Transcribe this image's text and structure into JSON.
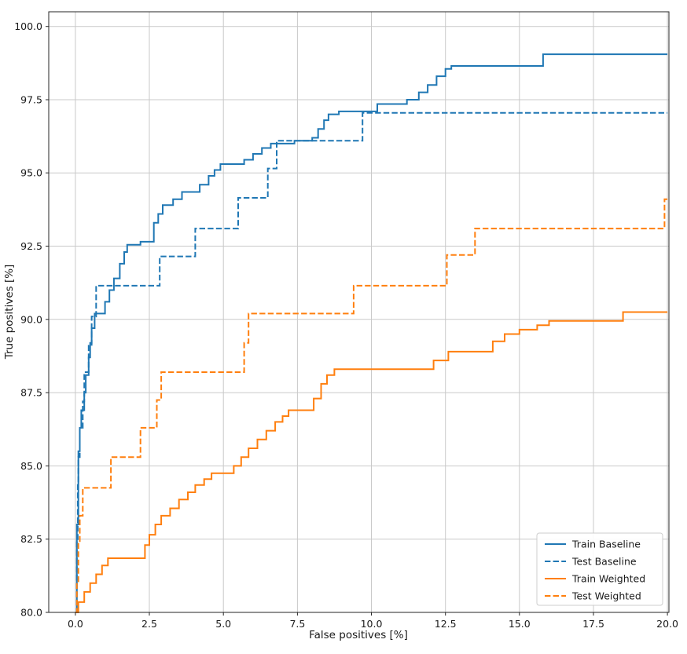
{
  "figure": {
    "background": "#ffffff"
  },
  "chart_data": {
    "type": "line",
    "subtype": "step-post",
    "title": "",
    "xlabel": "False positives [%]",
    "ylabel": "True positives [%]",
    "xlim": [
      0,
      20
    ],
    "ylim": [
      80,
      100
    ],
    "grid": true,
    "grid_color": "#c9c9c9",
    "axis_color": "#262626",
    "legend_position": "lower right",
    "xticks": [
      0,
      2.5,
      5,
      7.5,
      10,
      12.5,
      15,
      17.5,
      20
    ],
    "xtick_labels": [
      "0.0",
      "2.5",
      "5.0",
      "7.5",
      "10.0",
      "12.5",
      "15.0",
      "17.5",
      "20.0"
    ],
    "yticks": [
      80,
      82.5,
      85,
      87.5,
      90,
      92.5,
      95,
      97.5,
      100
    ],
    "ytick_labels": [
      "80.0",
      "82.5",
      "85.0",
      "87.5",
      "90.0",
      "92.5",
      "95.0",
      "97.5",
      "100.0"
    ],
    "series": [
      {
        "name": "Train Baseline",
        "color": "#1f77b4",
        "style": "solid",
        "points": [
          [
            0,
            80
          ],
          [
            0.05,
            83
          ],
          [
            0.1,
            85.5
          ],
          [
            0.15,
            86.3
          ],
          [
            0.2,
            86.9
          ],
          [
            0.3,
            87.5
          ],
          [
            0.35,
            88.1
          ],
          [
            0.45,
            88.7
          ],
          [
            0.5,
            89.2
          ],
          [
            0.55,
            89.7
          ],
          [
            0.65,
            90.2
          ],
          [
            1,
            90.6
          ],
          [
            1.15,
            91
          ],
          [
            1.3,
            91.4
          ],
          [
            1.5,
            91.9
          ],
          [
            1.65,
            92.3
          ],
          [
            1.75,
            92.55
          ],
          [
            2.2,
            92.65
          ],
          [
            2.65,
            93.3
          ],
          [
            2.8,
            93.6
          ],
          [
            2.95,
            93.9
          ],
          [
            3.3,
            94.1
          ],
          [
            3.6,
            94.35
          ],
          [
            4.2,
            94.6
          ],
          [
            4.5,
            94.9
          ],
          [
            4.7,
            95.1
          ],
          [
            4.9,
            95.3
          ],
          [
            5.7,
            95.45
          ],
          [
            6,
            95.65
          ],
          [
            6.3,
            95.85
          ],
          [
            6.6,
            96
          ],
          [
            7.4,
            96.1
          ],
          [
            8,
            96.2
          ],
          [
            8.2,
            96.5
          ],
          [
            8.4,
            96.8
          ],
          [
            8.55,
            97
          ],
          [
            8.9,
            97.1
          ],
          [
            10.2,
            97.35
          ],
          [
            11.2,
            97.5
          ],
          [
            11.6,
            97.75
          ],
          [
            11.9,
            98
          ],
          [
            12.2,
            98.3
          ],
          [
            12.5,
            98.55
          ],
          [
            12.7,
            98.65
          ],
          [
            15.8,
            99.05
          ],
          [
            20,
            99.05
          ]
        ]
      },
      {
        "name": "Test Baseline",
        "color": "#1f77b4",
        "style": "dashed",
        "points": [
          [
            0,
            80
          ],
          [
            0.05,
            82.5
          ],
          [
            0.08,
            84.4
          ],
          [
            0.1,
            85.3
          ],
          [
            0.15,
            86.3
          ],
          [
            0.25,
            87.2
          ],
          [
            0.3,
            88.2
          ],
          [
            0.45,
            89.1
          ],
          [
            0.55,
            90.1
          ],
          [
            0.7,
            91.15
          ],
          [
            2.85,
            92.15
          ],
          [
            4.05,
            93.1
          ],
          [
            5.5,
            94.15
          ],
          [
            6.5,
            95.15
          ],
          [
            6.8,
            96.1
          ],
          [
            9.7,
            97.05
          ],
          [
            20,
            97.05
          ]
        ]
      },
      {
        "name": "Train Weighted",
        "color": "#ff7f0e",
        "style": "solid",
        "points": [
          [
            0,
            80
          ],
          [
            0.1,
            80.35
          ],
          [
            0.3,
            80.7
          ],
          [
            0.5,
            81
          ],
          [
            0.7,
            81.3
          ],
          [
            0.9,
            81.6
          ],
          [
            1.1,
            81.85
          ],
          [
            2.35,
            82.3
          ],
          [
            2.5,
            82.65
          ],
          [
            2.7,
            83
          ],
          [
            2.9,
            83.3
          ],
          [
            3.2,
            83.55
          ],
          [
            3.5,
            83.85
          ],
          [
            3.8,
            84.1
          ],
          [
            4.05,
            84.35
          ],
          [
            4.35,
            84.55
          ],
          [
            4.6,
            84.75
          ],
          [
            5.35,
            85
          ],
          [
            5.6,
            85.3
          ],
          [
            5.85,
            85.6
          ],
          [
            6.15,
            85.9
          ],
          [
            6.45,
            86.2
          ],
          [
            6.75,
            86.5
          ],
          [
            7,
            86.7
          ],
          [
            7.2,
            86.9
          ],
          [
            8.05,
            87.3
          ],
          [
            8.3,
            87.8
          ],
          [
            8.5,
            88.1
          ],
          [
            8.75,
            88.3
          ],
          [
            12.1,
            88.6
          ],
          [
            12.6,
            88.9
          ],
          [
            14.1,
            89.25
          ],
          [
            14.5,
            89.5
          ],
          [
            15,
            89.65
          ],
          [
            15.6,
            89.8
          ],
          [
            16,
            89.95
          ],
          [
            18.5,
            90.25
          ],
          [
            20,
            90.25
          ]
        ]
      },
      {
        "name": "Test Weighted",
        "color": "#ff7f0e",
        "style": "dashed",
        "points": [
          [
            0,
            80
          ],
          [
            0.05,
            81
          ],
          [
            0.1,
            82.4
          ],
          [
            0.15,
            83.3
          ],
          [
            0.25,
            84.25
          ],
          [
            1.2,
            85.3
          ],
          [
            2.2,
            86.3
          ],
          [
            2.75,
            87.25
          ],
          [
            2.9,
            88.2
          ],
          [
            5.7,
            89.2
          ],
          [
            5.85,
            90.2
          ],
          [
            9.4,
            91.15
          ],
          [
            12.55,
            92.2
          ],
          [
            13.5,
            93.1
          ],
          [
            19.9,
            94.1
          ],
          [
            20,
            94.1
          ]
        ]
      }
    ]
  }
}
